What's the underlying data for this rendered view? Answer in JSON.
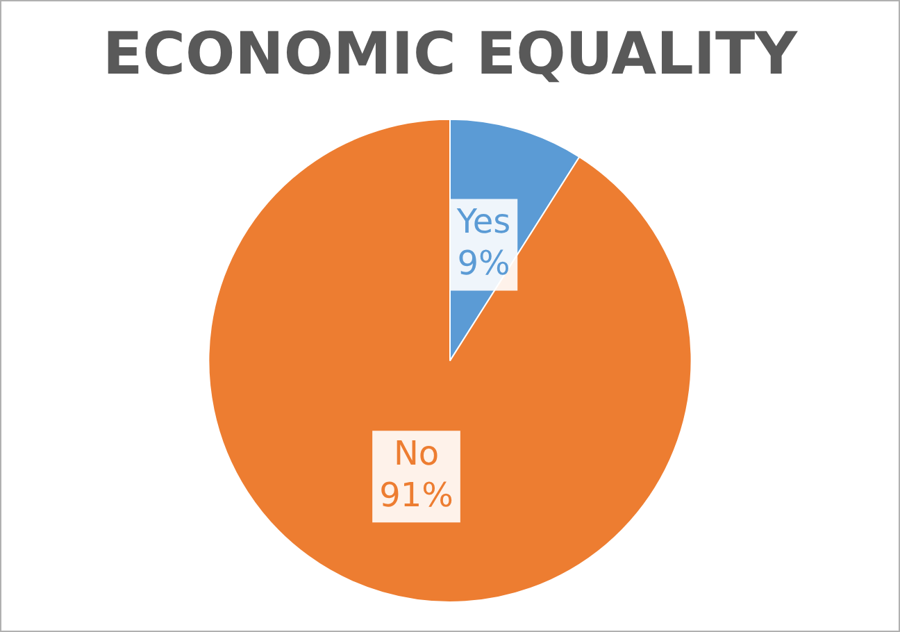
{
  "chart_data": {
    "type": "pie",
    "title": "ECONOMIC EQUALITY",
    "categories": [
      "Yes",
      "No"
    ],
    "values": [
      9,
      91
    ],
    "colors": [
      "#5b9bd5",
      "#ed7d31"
    ],
    "value_labels": [
      "9%",
      "91%"
    ],
    "legend": false
  }
}
